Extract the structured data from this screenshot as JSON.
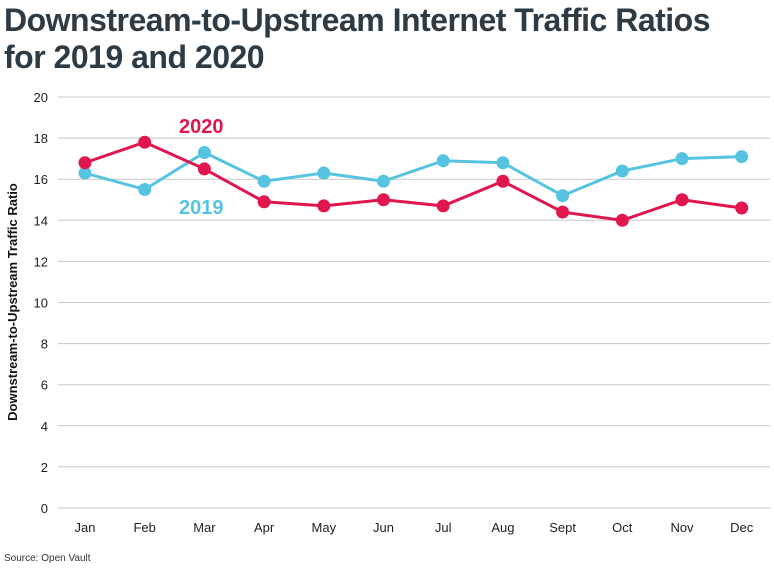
{
  "chart_data": {
    "type": "line",
    "title_line1": "Downstream-to-Upstream Internet Traffic Ratios",
    "title_line2": "for 2019 and 2020",
    "ylabel": "Downstream-to-Upstream Traffic Ratio",
    "xlabel": "",
    "source": "Source: Open Vault",
    "categories": [
      "Jan",
      "Feb",
      "Mar",
      "Apr",
      "May",
      "Jun",
      "Jul",
      "Aug",
      "Sept",
      "Oct",
      "Nov",
      "Dec"
    ],
    "ylim": [
      0,
      20
    ],
    "yticks": [
      0,
      2,
      4,
      6,
      8,
      10,
      12,
      14,
      16,
      18,
      20
    ],
    "grid": true,
    "series": [
      {
        "name": "2020",
        "color": "#e0174f",
        "values": [
          16.8,
          17.8,
          16.5,
          14.9,
          14.7,
          15.0,
          14.7,
          15.9,
          14.4,
          14.0,
          15.0,
          14.6
        ]
      },
      {
        "name": "2019",
        "color": "#56c3e0",
        "values": [
          16.3,
          15.5,
          17.3,
          15.9,
          16.3,
          15.9,
          16.9,
          16.8,
          15.2,
          16.4,
          17.0,
          17.1
        ]
      }
    ]
  }
}
